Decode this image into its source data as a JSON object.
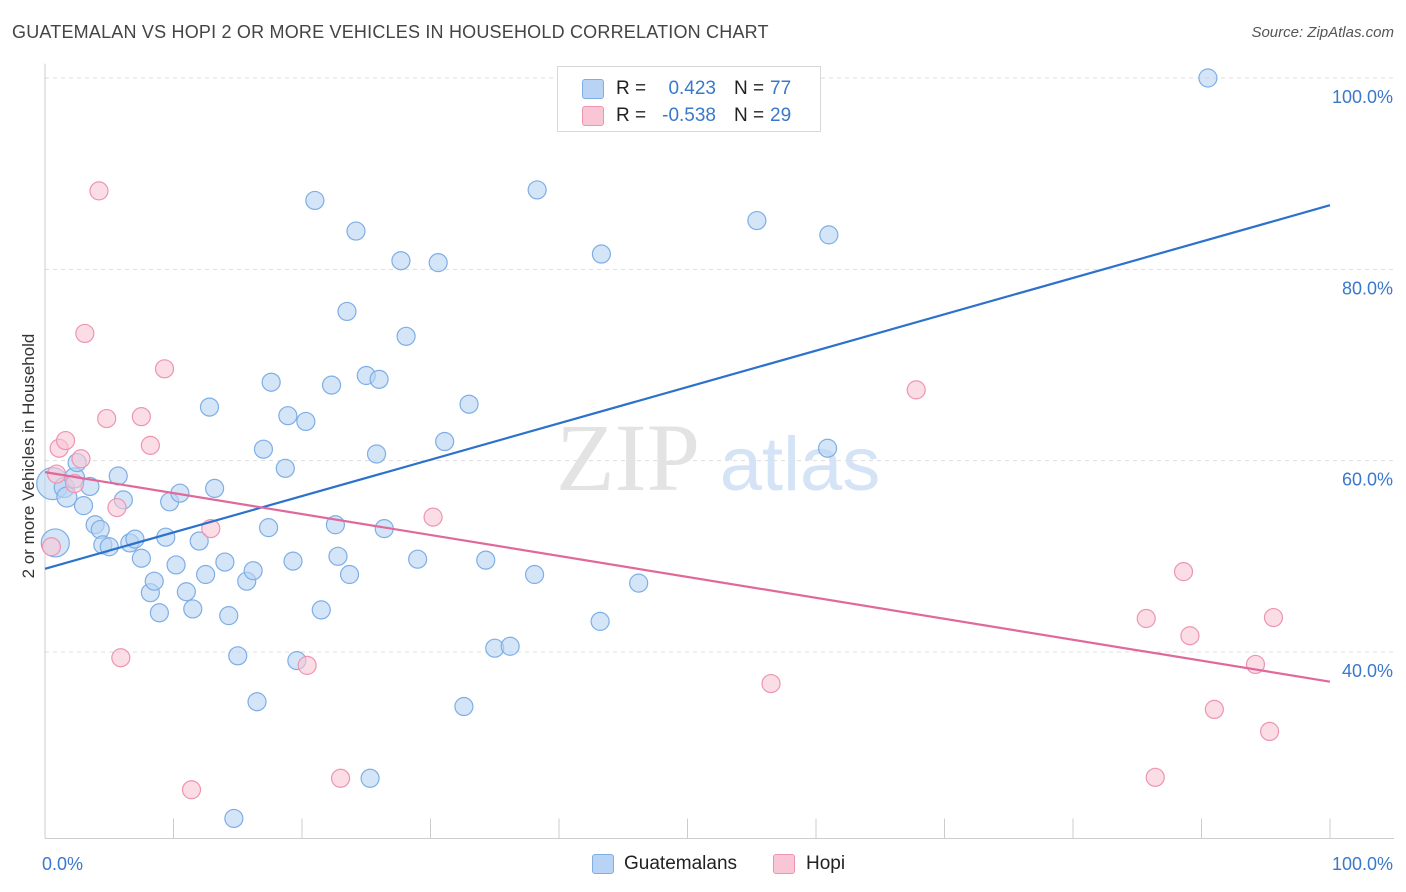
{
  "title": "GUATEMALAN VS HOPI 2 OR MORE VEHICLES IN HOUSEHOLD CORRELATION CHART",
  "source": "Source: ZipAtlas.com",
  "watermark": {
    "zip": "ZIP",
    "atlas": "atlas"
  },
  "legend_top": {
    "rows": [
      {
        "r_label": "R =",
        "r_value": "0.423",
        "n_label": "N =",
        "n_value": "77"
      },
      {
        "r_label": "R =",
        "r_value": "-0.538",
        "n_label": "N =",
        "n_value": "29"
      }
    ]
  },
  "legend_bottom": {
    "guatemalans": "Guatemalans",
    "hopi": "Hopi"
  },
  "colors": {
    "blue_fill": "#b8d3f4",
    "blue_stroke": "#7eaee6",
    "blue_line": "#2c72cc",
    "pink_fill": "#f9c6d6",
    "pink_stroke": "#ee94b2",
    "pink_line": "#e0699a",
    "grid": "#dddddd",
    "axis_text": "#3a78cc"
  },
  "chart_data": {
    "type": "scatter",
    "title": "GUATEMALAN VS HOPI 2 OR MORE VEHICLES IN HOUSEHOLD CORRELATION CHART",
    "xlabel": "",
    "ylabel": "2 or more Vehicles in Household",
    "xlim": [
      0,
      100
    ],
    "ylim": [
      20.5,
      101.5
    ],
    "x_tick_labels": [
      {
        "value": 0,
        "label": "0.0%"
      },
      {
        "value": 100,
        "label": "100.0%"
      }
    ],
    "y_tick_labels": [
      {
        "value": 40,
        "label": "40.0%"
      },
      {
        "value": 60,
        "label": "60.0%"
      },
      {
        "value": 80,
        "label": "80.0%"
      },
      {
        "value": 100,
        "label": "100.0%"
      }
    ],
    "series": [
      {
        "name": "Guatemalans",
        "r": 0.423,
        "n": 77,
        "trend": {
          "x": [
            0,
            100
          ],
          "y": [
            48.7,
            86.7
          ]
        },
        "points": [
          [
            0.6,
            57.6,
            16
          ],
          [
            0.8,
            51.4,
            14
          ],
          [
            1.5,
            57.2,
            10
          ],
          [
            1.7,
            56.2,
            10
          ],
          [
            2.3,
            58.2,
            10
          ],
          [
            2.5,
            59.8,
            9
          ],
          [
            3.0,
            55.3,
            9
          ],
          [
            3.5,
            57.3,
            9
          ],
          [
            3.9,
            53.3,
            9
          ],
          [
            4.3,
            52.8,
            9
          ],
          [
            4.5,
            51.2,
            9
          ],
          [
            5.0,
            51.0,
            9
          ],
          [
            5.7,
            58.4,
            9
          ],
          [
            6.1,
            55.9,
            9
          ],
          [
            6.6,
            51.4,
            9
          ],
          [
            7.0,
            51.8,
            9
          ],
          [
            7.5,
            49.8,
            9
          ],
          [
            8.2,
            46.2,
            9
          ],
          [
            8.5,
            47.4,
            9
          ],
          [
            8.9,
            44.1,
            9
          ],
          [
            9.4,
            52.0,
            9
          ],
          [
            9.7,
            55.7,
            9
          ],
          [
            10.2,
            49.1,
            9
          ],
          [
            10.5,
            56.6,
            9
          ],
          [
            11.0,
            46.3,
            9
          ],
          [
            11.5,
            44.5,
            9
          ],
          [
            12.0,
            51.6,
            9
          ],
          [
            12.5,
            48.1,
            9
          ],
          [
            12.8,
            65.6,
            9
          ],
          [
            13.2,
            57.1,
            9
          ],
          [
            14.0,
            49.4,
            9
          ],
          [
            14.3,
            43.8,
            9
          ],
          [
            15.0,
            39.6,
            9
          ],
          [
            15.7,
            47.4,
            9
          ],
          [
            16.2,
            48.5,
            9
          ],
          [
            16.5,
            34.8,
            9
          ],
          [
            17.0,
            61.2,
            9
          ],
          [
            17.4,
            53.0,
            9
          ],
          [
            17.6,
            68.2,
            9
          ],
          [
            18.7,
            59.2,
            9
          ],
          [
            18.9,
            64.7,
            9
          ],
          [
            19.3,
            49.5,
            9
          ],
          [
            19.6,
            39.1,
            9
          ],
          [
            20.3,
            64.1,
            9
          ],
          [
            21.0,
            87.2,
            9
          ],
          [
            21.5,
            44.4,
            9
          ],
          [
            22.3,
            67.9,
            9
          ],
          [
            22.6,
            53.3,
            9
          ],
          [
            22.8,
            50.0,
            9
          ],
          [
            23.5,
            75.6,
            9
          ],
          [
            23.7,
            48.1,
            9
          ],
          [
            24.2,
            84.0,
            9
          ],
          [
            25.0,
            68.9,
            9
          ],
          [
            25.3,
            26.8,
            9
          ],
          [
            25.8,
            60.7,
            9
          ],
          [
            26.0,
            68.5,
            9
          ],
          [
            26.4,
            52.9,
            9
          ],
          [
            27.7,
            80.9,
            9
          ],
          [
            28.1,
            73.0,
            9
          ],
          [
            29.0,
            49.7,
            9
          ],
          [
            30.6,
            80.7,
            9
          ],
          [
            31.1,
            62.0,
            9
          ],
          [
            32.6,
            34.3,
            9
          ],
          [
            33.0,
            65.9,
            9
          ],
          [
            34.3,
            49.6,
            9
          ],
          [
            35.0,
            40.4,
            9
          ],
          [
            36.2,
            40.6,
            9
          ],
          [
            38.1,
            48.1,
            9
          ],
          [
            38.3,
            88.3,
            9
          ],
          [
            43.2,
            43.2,
            9
          ],
          [
            43.3,
            81.6,
            9
          ],
          [
            46.2,
            47.2,
            9
          ],
          [
            55.4,
            85.1,
            9
          ],
          [
            60.9,
            61.3,
            9
          ],
          [
            61.0,
            83.6,
            9
          ],
          [
            14.7,
            22.6,
            9
          ],
          [
            90.5,
            100.0,
            9
          ]
        ]
      },
      {
        "name": "Hopi",
        "r": -0.538,
        "n": 29,
        "trend": {
          "x": [
            0,
            100
          ],
          "y": [
            58.8,
            36.9
          ]
        },
        "points": [
          [
            0.5,
            51.0,
            9
          ],
          [
            0.9,
            58.6,
            9
          ],
          [
            1.1,
            61.3,
            9
          ],
          [
            1.6,
            62.1,
            9
          ],
          [
            2.3,
            57.6,
            9
          ],
          [
            2.8,
            60.2,
            9
          ],
          [
            3.1,
            73.3,
            9
          ],
          [
            4.2,
            88.2,
            9
          ],
          [
            4.8,
            64.4,
            9
          ],
          [
            5.6,
            55.1,
            9
          ],
          [
            5.9,
            39.4,
            9
          ],
          [
            7.5,
            64.6,
            9
          ],
          [
            8.2,
            61.6,
            9
          ],
          [
            9.3,
            69.6,
            9
          ],
          [
            11.4,
            25.6,
            9
          ],
          [
            12.9,
            52.9,
            9
          ],
          [
            20.4,
            38.6,
            9
          ],
          [
            23.0,
            26.8,
            9
          ],
          [
            30.2,
            54.1,
            9
          ],
          [
            56.5,
            36.7,
            9
          ],
          [
            67.8,
            67.4,
            9
          ],
          [
            85.7,
            43.5,
            9
          ],
          [
            86.4,
            26.9,
            9
          ],
          [
            88.6,
            48.4,
            9
          ],
          [
            89.1,
            41.7,
            9
          ],
          [
            91.0,
            34.0,
            9
          ],
          [
            94.2,
            38.7,
            9
          ],
          [
            95.3,
            31.7,
            9
          ],
          [
            95.6,
            43.6,
            9
          ]
        ]
      }
    ]
  }
}
